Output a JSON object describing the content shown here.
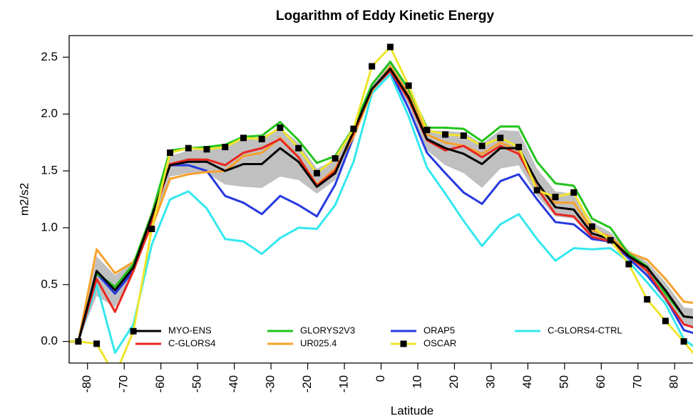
{
  "chart_data": {
    "type": "line",
    "title": "Logarithm of Eddy Kinetic Energy",
    "x_label": "Latitude",
    "y_label": "m2/s2",
    "x": [
      -87.5,
      -82.5,
      -77.5,
      -72.5,
      -67.5,
      -62.5,
      -57.5,
      -52.5,
      -47.5,
      -42.5,
      -37.5,
      -32.5,
      -27.5,
      -22.5,
      -17.5,
      -12.5,
      -7.5,
      -2.5,
      2.5,
      7.5,
      12.5,
      17.5,
      22.5,
      27.5,
      32.5,
      37.5,
      42.5,
      47.5,
      52.5,
      57.5,
      62.5,
      67.5,
      72.5,
      77.5,
      82.5,
      87.5
    ],
    "band": {
      "color": "#c0c0c0",
      "lower": [
        0,
        0,
        0.4,
        0.3,
        0.6,
        1.0,
        1.45,
        1.48,
        1.48,
        1.38,
        1.36,
        1.35,
        1.45,
        1.42,
        1.3,
        1.42,
        1.78,
        2.18,
        2.35,
        2.08,
        1.68,
        1.55,
        1.48,
        1.35,
        1.52,
        1.55,
        1.28,
        1.1,
        1.08,
        0.9,
        0.86,
        0.72,
        0.58,
        0.35,
        0.15,
        0.1
      ],
      "upper": [
        0,
        0,
        0.75,
        0.58,
        0.7,
        1.15,
        1.63,
        1.68,
        1.7,
        1.7,
        1.78,
        1.8,
        1.88,
        1.75,
        1.52,
        1.6,
        1.9,
        2.28,
        2.45,
        2.22,
        1.86,
        1.85,
        1.84,
        1.74,
        1.86,
        1.85,
        1.52,
        1.32,
        1.3,
        1.05,
        0.96,
        0.8,
        0.7,
        0.52,
        0.3,
        0.28
      ]
    },
    "series": [
      {
        "name": "MYO-ENS",
        "color": "#000000",
        "values": [
          0,
          0,
          0.62,
          0.45,
          0.65,
          1.1,
          1.55,
          1.58,
          1.58,
          1.5,
          1.56,
          1.56,
          1.7,
          1.58,
          1.36,
          1.48,
          1.85,
          2.22,
          2.4,
          2.15,
          1.78,
          1.7,
          1.65,
          1.56,
          1.7,
          1.7,
          1.4,
          1.18,
          1.16,
          0.95,
          0.9,
          0.75,
          0.65,
          0.45,
          0.22,
          0.2
        ]
      },
      {
        "name": "C-GLORS4",
        "color": "#e8251e",
        "values": [
          0,
          0,
          0.55,
          0.26,
          0.62,
          1.05,
          1.56,
          1.6,
          1.6,
          1.55,
          1.66,
          1.7,
          1.78,
          1.62,
          1.37,
          1.5,
          1.83,
          2.22,
          2.38,
          2.13,
          1.77,
          1.68,
          1.72,
          1.62,
          1.72,
          1.65,
          1.35,
          1.12,
          1.1,
          0.92,
          0.88,
          0.75,
          0.62,
          0.38,
          0.15,
          0.1
        ]
      },
      {
        "name": "GLORYS2V3",
        "color": "#22c31b",
        "values": [
          0,
          0,
          0.6,
          0.48,
          0.68,
          1.12,
          1.68,
          1.7,
          1.71,
          1.73,
          1.8,
          1.81,
          1.93,
          1.77,
          1.57,
          1.63,
          1.88,
          2.26,
          2.46,
          2.22,
          1.88,
          1.88,
          1.87,
          1.76,
          1.89,
          1.89,
          1.58,
          1.39,
          1.37,
          1.08,
          1.0,
          0.77,
          0.66,
          0.42,
          0.22,
          0.2
        ]
      },
      {
        "name": "UR025.4",
        "color": "#f7a12c",
        "values": [
          0,
          0,
          0.81,
          0.6,
          0.7,
          1.0,
          1.43,
          1.47,
          1.49,
          1.5,
          1.63,
          1.66,
          1.79,
          1.62,
          1.38,
          1.52,
          1.8,
          2.2,
          2.42,
          2.18,
          1.82,
          1.75,
          1.72,
          1.65,
          1.75,
          1.68,
          1.35,
          1.22,
          1.22,
          0.98,
          0.92,
          0.78,
          0.72,
          0.55,
          0.35,
          0.33
        ]
      },
      {
        "name": "ORAP5",
        "color": "#2639e0",
        "values": [
          0,
          0,
          0.6,
          0.42,
          0.62,
          1.08,
          1.55,
          1.55,
          1.5,
          1.28,
          1.22,
          1.12,
          1.28,
          1.2,
          1.1,
          1.38,
          1.8,
          2.22,
          2.38,
          2.05,
          1.66,
          1.48,
          1.31,
          1.21,
          1.41,
          1.47,
          1.25,
          1.05,
          1.03,
          0.9,
          0.88,
          0.73,
          0.58,
          0.38,
          0.1,
          0.05
        ]
      },
      {
        "name": "OSCAR",
        "color": "#f0e52c",
        "marker": "square",
        "marker_color": "#000000",
        "values": [
          0,
          0,
          -0.02,
          -0.3,
          0.09,
          0.99,
          1.66,
          1.7,
          1.69,
          1.71,
          1.79,
          1.78,
          1.88,
          1.7,
          1.48,
          1.61,
          1.87,
          2.42,
          2.59,
          2.25,
          1.86,
          1.82,
          1.81,
          1.72,
          1.79,
          1.71,
          1.33,
          1.27,
          1.31,
          1.01,
          0.89,
          0.68,
          0.37,
          0.18,
          0.0,
          -0.2
        ]
      },
      {
        "name": "C-GLORS4-CTRL",
        "color": "#33e8ee",
        "values": [
          0,
          0,
          0.5,
          -0.1,
          0.15,
          0.85,
          1.25,
          1.32,
          1.17,
          0.9,
          0.88,
          0.77,
          0.91,
          1.0,
          0.99,
          1.2,
          1.58,
          2.18,
          2.35,
          1.98,
          1.53,
          1.3,
          1.06,
          0.84,
          1.03,
          1.12,
          0.9,
          0.71,
          0.82,
          0.81,
          0.82,
          0.7,
          0.52,
          0.33,
          0.02,
          -0.1
        ]
      }
    ],
    "xlim": [
      -85,
      85
    ],
    "ylim": [
      -0.19,
      2.69
    ],
    "xticks": [
      -80,
      -70,
      -60,
      -50,
      -40,
      -30,
      -20,
      -10,
      0,
      10,
      20,
      30,
      40,
      50,
      60,
      70,
      80
    ],
    "yticks": [
      {
        "value": 0,
        "label": "0.0"
      },
      0.5,
      {
        "value": 1,
        "label": "1.0"
      },
      1.5,
      {
        "value": 2,
        "label": "2.0"
      },
      2.5
    ],
    "legend_position": "bottom"
  }
}
